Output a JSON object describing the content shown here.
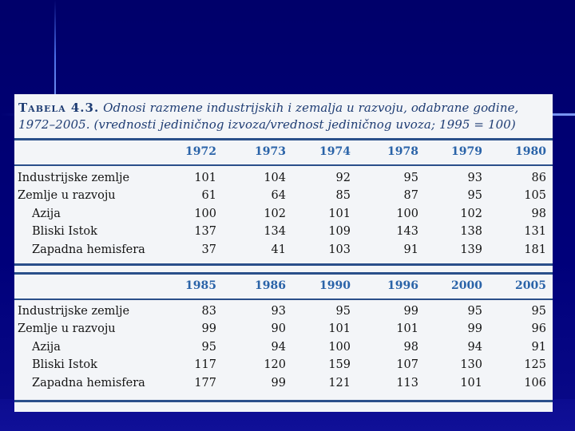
{
  "table": {
    "title_label": "Tabela 4.3.",
    "title_line1": " Odnosi razmene industrijskih i zemalja u razvoju, odabrane godine,",
    "title_line2": "1972–2005. (vrednosti jediničnog izvoza/vrednost jediničnog uvoza; 1995 = 100)",
    "panels": [
      {
        "years": [
          "1972",
          "1973",
          "1974",
          "1978",
          "1979",
          "1980"
        ],
        "rows": [
          {
            "label": "Industrijske zemlje",
            "indent": false,
            "values": [
              "101",
              "104",
              "92",
              "95",
              "93",
              "86"
            ]
          },
          {
            "label": "Zemlje u razvoju",
            "indent": false,
            "values": [
              "61",
              "64",
              "85",
              "87",
              "95",
              "105"
            ]
          },
          {
            "label": "Azija",
            "indent": true,
            "values": [
              "100",
              "102",
              "101",
              "100",
              "102",
              "98"
            ]
          },
          {
            "label": "Bliski Istok",
            "indent": true,
            "values": [
              "137",
              "134",
              "109",
              "143",
              "138",
              "131"
            ]
          },
          {
            "label": "Zapadna hemisfera",
            "indent": true,
            "values": [
              "37",
              "41",
              "103",
              "91",
              "139",
              "181"
            ]
          }
        ]
      },
      {
        "years": [
          "1985",
          "1986",
          "1990",
          "1996",
          "2000",
          "2005"
        ],
        "rows": [
          {
            "label": "Industrijske zemlje",
            "indent": false,
            "values": [
              "83",
              "93",
              "95",
              "99",
              "95",
              "95"
            ]
          },
          {
            "label": "Zemlje u razvoju",
            "indent": false,
            "values": [
              "99",
              "90",
              "101",
              "101",
              "99",
              "96"
            ]
          },
          {
            "label": "Azija",
            "indent": true,
            "values": [
              "95",
              "94",
              "100",
              "98",
              "94",
              "91"
            ]
          },
          {
            "label": "Bliski Istok",
            "indent": true,
            "values": [
              "117",
              "120",
              "159",
              "107",
              "130",
              "125"
            ]
          },
          {
            "label": "Zapadna hemisfera",
            "indent": true,
            "values": [
              "177",
              "99",
              "121",
              "113",
              "101",
              "106"
            ]
          }
        ]
      }
    ]
  }
}
